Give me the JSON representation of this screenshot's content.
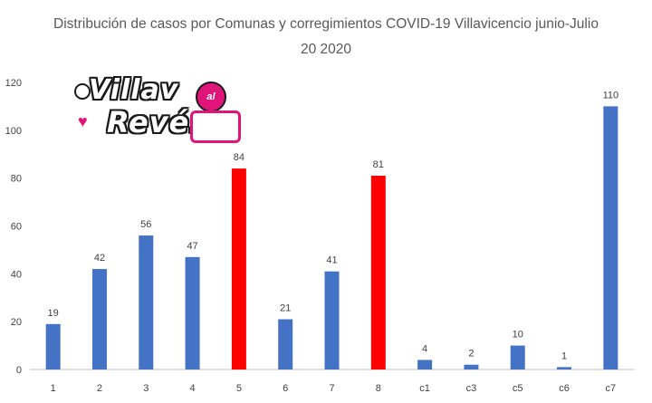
{
  "chart_data": {
    "type": "bar",
    "title_line1": "Distribución de casos por Comunas y corregimientos COVID-19 Villavicencio junio-Julio",
    "title_line2": "20 2020",
    "categories": [
      "1",
      "2",
      "3",
      "4",
      "5",
      "6",
      "7",
      "8",
      "c1",
      "c3",
      "c5",
      "c6",
      "c7"
    ],
    "values": [
      19,
      42,
      56,
      47,
      84,
      21,
      41,
      81,
      4,
      2,
      10,
      1,
      110
    ],
    "highlight": [
      false,
      false,
      false,
      false,
      true,
      false,
      false,
      true,
      false,
      false,
      false,
      false,
      false
    ],
    "ylim": [
      0,
      120
    ],
    "yticks": [
      0,
      20,
      40,
      60,
      80,
      100,
      120
    ],
    "grid": false,
    "colors": {
      "default": "#4472c4",
      "highlight": "#ff0000",
      "axis": "#bfbfbf",
      "text": "#404040"
    }
  },
  "logo": {
    "line1": "Villav",
    "badge": "al",
    "line2": "Revés"
  }
}
